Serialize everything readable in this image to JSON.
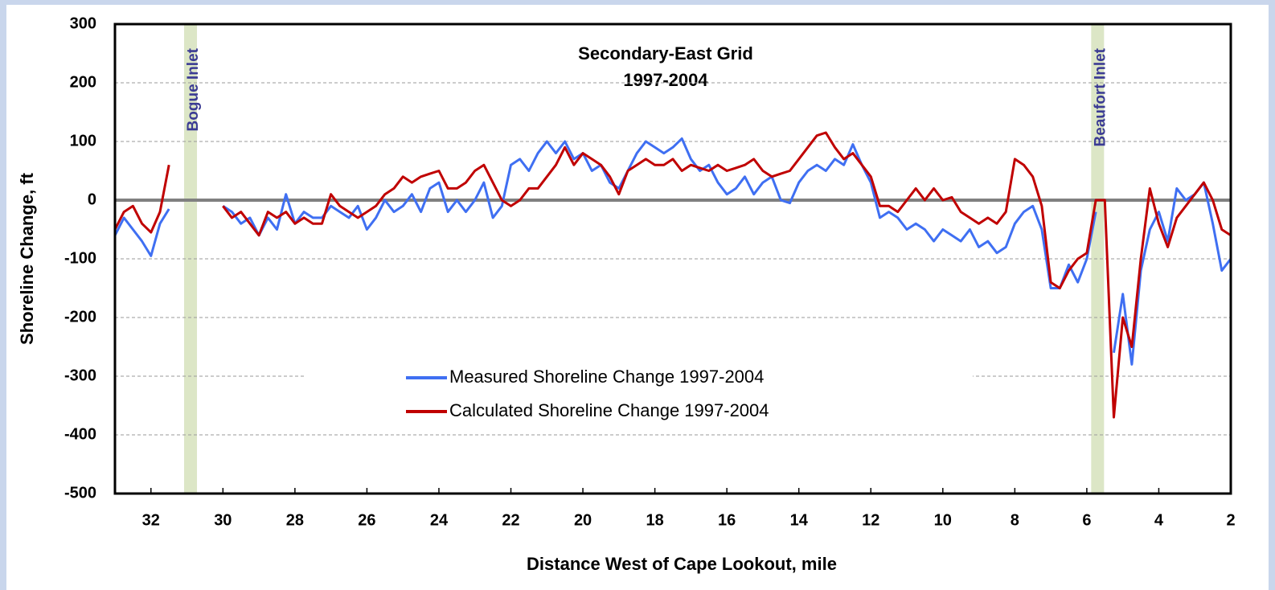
{
  "chart_data": {
    "type": "line",
    "title": "Secondary-East Grid",
    "subtitle": "1997-2004",
    "x_label": "Distance West of Cape Lookout, mile",
    "y_label": "Shoreline Change, ft",
    "xlim": [
      33,
      2
    ],
    "ylim": [
      -500,
      300
    ],
    "xticks": [
      32,
      30,
      28,
      26,
      24,
      22,
      20,
      18,
      16,
      14,
      12,
      10,
      8,
      6,
      4,
      2
    ],
    "yticks": [
      -500,
      -400,
      -300,
      -200,
      -100,
      0,
      100,
      200,
      300
    ],
    "grid": true,
    "legend": "center",
    "annotations": [
      {
        "text": "Bogue Inlet",
        "x": 30.9
      },
      {
        "text": "Beaufort Inlet",
        "x": 5.7
      }
    ],
    "x": [
      33,
      32.75,
      32.5,
      32.25,
      32,
      31.75,
      31.5,
      31.25,
      31,
      30.75,
      30.5,
      30.25,
      30,
      29.75,
      29.5,
      29.25,
      29,
      28.75,
      28.5,
      28.25,
      28,
      27.75,
      27.5,
      27.25,
      27,
      26.75,
      26.5,
      26.25,
      26,
      25.75,
      25.5,
      25.25,
      25,
      24.75,
      24.5,
      24.25,
      24,
      23.75,
      23.5,
      23.25,
      23,
      22.75,
      22.5,
      22.25,
      22,
      21.75,
      21.5,
      21.25,
      21,
      20.75,
      20.5,
      20.25,
      20,
      19.75,
      19.5,
      19.25,
      19,
      18.75,
      18.5,
      18.25,
      18,
      17.75,
      17.5,
      17.25,
      17,
      16.75,
      16.5,
      16.25,
      16,
      15.75,
      15.5,
      15.25,
      15,
      14.75,
      14.5,
      14.25,
      14,
      13.75,
      13.5,
      13.25,
      13,
      12.75,
      12.5,
      12.25,
      12,
      11.75,
      11.5,
      11.25,
      11,
      10.75,
      10.5,
      10.25,
      10,
      9.75,
      9.5,
      9.25,
      9,
      8.75,
      8.5,
      8.25,
      8,
      7.75,
      7.5,
      7.25,
      7,
      6.75,
      6.5,
      6.25,
      6,
      5.75,
      5.5,
      5.25,
      5,
      4.75,
      4.5,
      4.25,
      4,
      3.75,
      3.5,
      3.25,
      3,
      2.75,
      2.5,
      2.25,
      2
    ],
    "series": [
      {
        "name": "Measured Shoreline Change 1997-2004",
        "color": "#3f6ff2",
        "values": [
          -60,
          -30,
          -50,
          -70,
          -95,
          -40,
          -15,
          null,
          null,
          null,
          null,
          null,
          -10,
          -20,
          -40,
          -30,
          -60,
          -30,
          -50,
          10,
          -40,
          -20,
          -30,
          -30,
          -10,
          -20,
          -30,
          -10,
          -50,
          -30,
          0,
          -20,
          -10,
          10,
          -20,
          20,
          30,
          -20,
          0,
          -20,
          0,
          30,
          -30,
          -10,
          60,
          70,
          50,
          80,
          100,
          80,
          100,
          70,
          80,
          50,
          60,
          30,
          20,
          50,
          80,
          100,
          90,
          80,
          90,
          105,
          70,
          50,
          60,
          30,
          10,
          20,
          40,
          10,
          30,
          40,
          0,
          -5,
          30,
          50,
          60,
          50,
          70,
          60,
          95,
          60,
          30,
          -30,
          -20,
          -30,
          -50,
          -40,
          -50,
          -70,
          -50,
          -60,
          -70,
          -50,
          -80,
          -70,
          -90,
          -80,
          -40,
          -20,
          -10,
          -50,
          -150,
          -150,
          -110,
          -140,
          -100,
          -20,
          null,
          -260,
          -160,
          -280,
          -120,
          -50,
          -20,
          -70,
          20,
          0,
          10,
          30,
          -40,
          -120,
          -100
        ]
      },
      {
        "name": "Calculated Shoreline Change 1997-2004",
        "color": "#c00000",
        "values": [
          -50,
          -20,
          -10,
          -40,
          -55,
          -20,
          60,
          null,
          null,
          null,
          null,
          null,
          -10,
          -30,
          -20,
          -40,
          -60,
          -20,
          -30,
          -20,
          -40,
          -30,
          -40,
          -40,
          10,
          -10,
          -20,
          -30,
          -20,
          -10,
          10,
          20,
          40,
          30,
          40,
          45,
          50,
          20,
          20,
          30,
          50,
          60,
          30,
          0,
          -10,
          0,
          20,
          20,
          40,
          60,
          90,
          60,
          80,
          70,
          60,
          40,
          10,
          50,
          60,
          70,
          60,
          60,
          70,
          50,
          60,
          55,
          50,
          60,
          50,
          55,
          60,
          70,
          50,
          40,
          45,
          50,
          70,
          90,
          110,
          115,
          90,
          70,
          80,
          60,
          40,
          -10,
          -10,
          -20,
          0,
          20,
          0,
          20,
          0,
          5,
          -20,
          -30,
          -40,
          -30,
          -40,
          -20,
          70,
          60,
          40,
          -10,
          -140,
          -150,
          -120,
          -100,
          -90,
          0,
          0,
          -370,
          -200,
          -250,
          -100,
          20,
          -40,
          -80,
          -30,
          -10,
          10,
          30,
          0,
          -50,
          -60
        ]
      }
    ]
  }
}
